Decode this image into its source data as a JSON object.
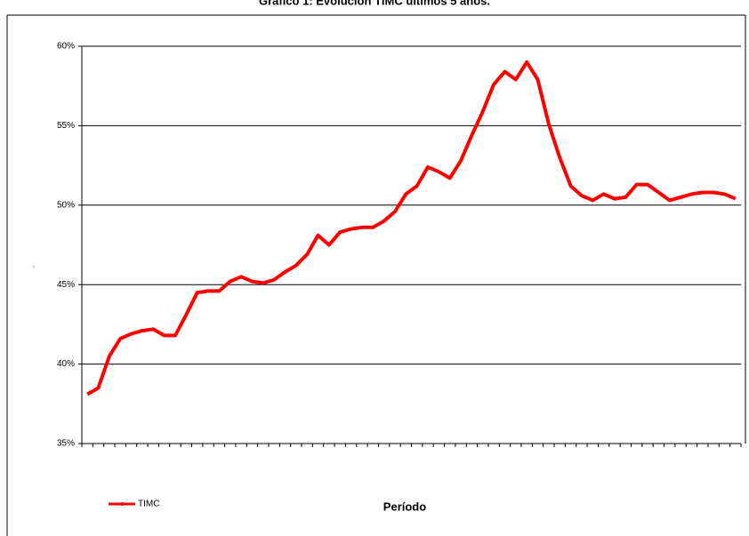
{
  "chart_data": {
    "type": "line",
    "title": "Gráfico 1: Evolución TIMC últimos 5 años.",
    "x_label": "Período",
    "y_label": ".",
    "categories": [
      null,
      null,
      null,
      null,
      null,
      null,
      null,
      null,
      null,
      null,
      null,
      null,
      null,
      null,
      null,
      null,
      null,
      null,
      null,
      null,
      null,
      null,
      null,
      null,
      null,
      null,
      null,
      null,
      null,
      null,
      null,
      null,
      null,
      null,
      null,
      null,
      null,
      null,
      null,
      null,
      null,
      null,
      null,
      null,
      null,
      null,
      null,
      null,
      null,
      null,
      null,
      null,
      null,
      null,
      null,
      null,
      null,
      null,
      null,
      null
    ],
    "series": [
      {
        "name": "TIMC",
        "color": "#ff0000",
        "values": [
          38.1,
          38.5,
          40.5,
          41.6,
          41.9,
          42.1,
          42.2,
          41.8,
          41.8,
          43.1,
          44.5,
          44.6,
          44.6,
          45.2,
          45.5,
          45.2,
          45.1,
          45.3,
          45.8,
          46.2,
          46.9,
          48.1,
          47.5,
          48.3,
          48.5,
          48.6,
          48.6,
          49.0,
          49.6,
          50.7,
          51.2,
          52.4,
          52.1,
          51.7,
          52.8,
          54.4,
          55.9,
          57.6,
          58.4,
          57.9,
          59.0,
          57.9,
          55.1,
          53.0,
          51.2,
          50.6,
          50.3,
          50.7,
          50.4,
          50.5,
          51.3,
          51.3,
          50.8,
          50.3,
          50.5,
          50.7,
          50.8,
          50.8,
          50.7,
          50.4
        ]
      }
    ],
    "ylim": [
      35,
      60
    ],
    "yticks": [
      {
        "value": 35,
        "label": "35%"
      },
      {
        "value": 40,
        "label": "40%"
      },
      {
        "value": 45,
        "label": "45%"
      },
      {
        "value": 50,
        "label": "50%"
      },
      {
        "value": 55,
        "label": "55%"
      },
      {
        "value": 60,
        "label": "60%"
      }
    ],
    "grid": true,
    "legend": "bottom-left"
  }
}
